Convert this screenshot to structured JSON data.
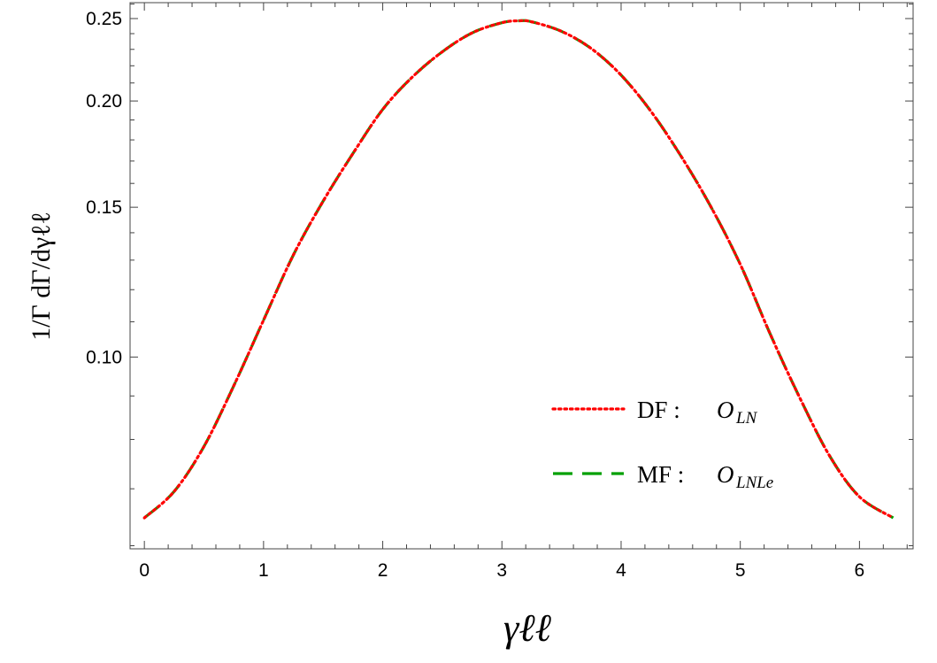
{
  "chart_data": {
    "type": "line",
    "ylabel": "1/Γ dΓ/dγℓℓ",
    "xlabel": "γℓℓ",
    "xlim": [
      -0.12,
      6.45
    ],
    "ylim": [
      0.0595,
      0.261
    ],
    "y_scale": "log",
    "x_ticks": [
      "0",
      "1",
      "2",
      "3",
      "4",
      "5",
      "6"
    ],
    "y_ticks": [
      "0.10",
      "0.15",
      "0.20",
      "0.25"
    ],
    "grid": false,
    "legend_position": "bottom-right",
    "series": [
      {
        "name_prefix": "DF : ",
        "name_operator": "O",
        "name_subscript": "LN",
        "style": "dotted",
        "color": "#ff0000",
        "x": [
          0,
          0.25,
          0.5,
          0.75,
          1.0,
          1.25,
          1.5,
          1.75,
          2.0,
          2.25,
          2.5,
          2.75,
          3.0,
          3.1416,
          3.25,
          3.5,
          3.75,
          4.0,
          4.25,
          4.5,
          4.75,
          5.0,
          5.25,
          5.5,
          5.75,
          6.0,
          6.2832
        ],
        "y": [
          0.0647,
          0.0695,
          0.0785,
          0.0925,
          0.1105,
          0.1318,
          0.1525,
          0.1735,
          0.1955,
          0.2135,
          0.2285,
          0.2405,
          0.2472,
          0.2485,
          0.2478,
          0.2415,
          0.2305,
          0.2145,
          0.1945,
          0.1725,
          0.1505,
          0.1285,
          0.1065,
          0.0895,
          0.0765,
          0.0685,
          0.0647
        ]
      },
      {
        "name_prefix": "MF : ",
        "name_operator": "O",
        "name_subscript": "LNLe",
        "style": "dashed",
        "color": "#00a000",
        "x": [
          0,
          0.25,
          0.5,
          0.75,
          1.0,
          1.25,
          1.5,
          1.75,
          2.0,
          2.25,
          2.5,
          2.75,
          3.0,
          3.1416,
          3.25,
          3.5,
          3.75,
          4.0,
          4.25,
          4.5,
          4.75,
          5.0,
          5.25,
          5.5,
          5.75,
          6.0,
          6.2832
        ],
        "y": [
          0.0647,
          0.0695,
          0.0785,
          0.0925,
          0.1105,
          0.1318,
          0.1525,
          0.1735,
          0.1955,
          0.2135,
          0.2285,
          0.2405,
          0.2472,
          0.2485,
          0.2478,
          0.2415,
          0.2305,
          0.2145,
          0.1945,
          0.1725,
          0.1505,
          0.1285,
          0.1065,
          0.0895,
          0.0765,
          0.0685,
          0.0647
        ]
      }
    ]
  }
}
